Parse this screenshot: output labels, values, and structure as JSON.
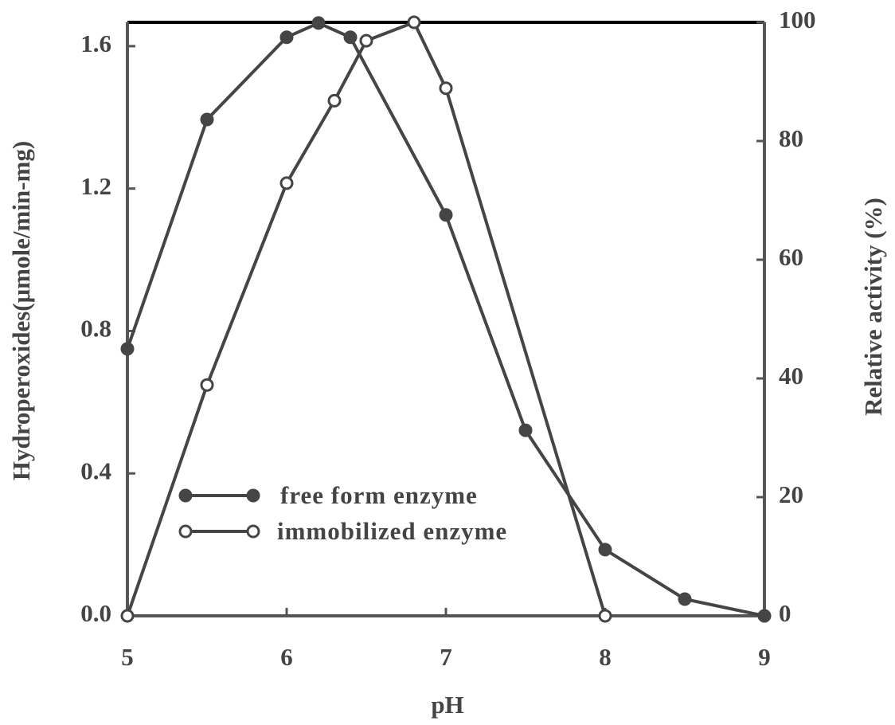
{
  "chart_data": {
    "type": "line",
    "xlabel": "pH",
    "ylabel": "Hydroperoxides(μmole/min-mg)",
    "y2label": "Relative activity (%)",
    "xlim": [
      5,
      9
    ],
    "xticks": [
      5,
      6,
      7,
      8,
      9
    ],
    "ylim": [
      0,
      1.667
    ],
    "yticks": [
      {
        "value": 0,
        "label": "0.0"
      },
      0.4,
      0.8,
      1.2,
      1.6
    ],
    "y2lim": [
      0,
      100
    ],
    "y2ticks": [
      0,
      20,
      40,
      60,
      80,
      100
    ],
    "legend": "lower left",
    "series": [
      {
        "name": "free form enzyme",
        "color": "#454545",
        "marker": "filled",
        "x": [
          5,
          5.5,
          6,
          6.2,
          6.4,
          7,
          7.5,
          8,
          8.5,
          9
        ],
        "values": [
          0.75,
          1.394,
          1.625,
          1.665,
          1.625,
          1.126,
          0.521,
          0.186,
          0.047,
          0
        ]
      },
      {
        "name": "immobilized enzyme",
        "color": "#454545",
        "marker": "open",
        "axis": "y2",
        "x": [
          5,
          5.5,
          6,
          6.3,
          6.5,
          6.8,
          7,
          8
        ],
        "values": [
          0,
          38.9,
          72.9,
          86.8,
          96.9,
          100,
          88.9,
          0
        ]
      }
    ]
  }
}
